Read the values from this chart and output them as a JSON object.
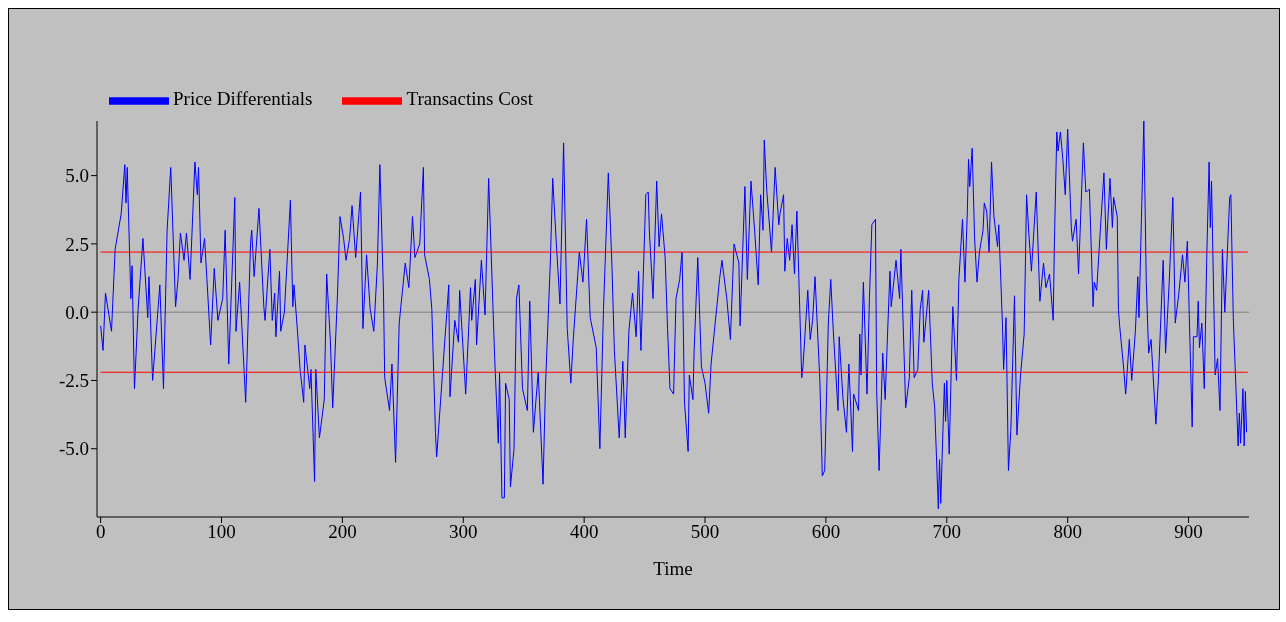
{
  "chart_data": {
    "type": "line",
    "xlabel": "Time",
    "xlim": [
      -3,
      950
    ],
    "ylim": [
      -7.5,
      7.0
    ],
    "xticks": [
      0,
      100,
      200,
      300,
      400,
      500,
      600,
      700,
      800,
      900
    ],
    "yticks": [
      {
        "value": -5,
        "label": "-5.0"
      },
      {
        "value": -2.5,
        "label": "-2.5"
      },
      {
        "value": 0,
        "label": "0.0"
      },
      {
        "value": 2.5,
        "label": "2.5"
      },
      {
        "value": 5,
        "label": "5.0"
      }
    ],
    "grid": false,
    "legend": "top left",
    "marker": "none",
    "line_style": "solid",
    "ref_lines": [
      {
        "axis": "y",
        "value": 0,
        "color": "#808080"
      }
    ],
    "series": [
      {
        "name": "Price Differentials",
        "color": "#0000ff",
        "x": [
          0,
          2,
          4,
          9,
          12,
          17,
          20,
          21,
          22,
          25,
          26,
          28,
          31,
          35,
          39,
          40,
          43,
          49,
          52,
          55,
          58,
          62,
          64,
          66,
          69,
          71,
          74,
          78,
          80,
          81,
          83,
          86,
          91,
          94,
          97,
          101,
          103,
          106,
          111,
          112,
          115,
          120,
          124,
          125,
          127,
          131,
          135,
          136,
          140,
          142,
          144,
          145,
          148,
          149,
          152,
          157,
          159,
          160,
          163,
          165,
          168,
          169,
          173,
          174,
          177,
          178,
          181,
          185,
          187,
          190,
          192,
          196,
          198,
          201,
          203,
          206,
          208,
          211,
          215,
          217,
          220,
          223,
          226,
          229,
          231,
          234,
          235,
          239,
          241,
          244,
          247,
          252,
          255,
          258,
          260,
          264,
          267,
          268,
          272,
          274,
          277,
          278,
          284,
          288,
          289,
          293,
          296,
          297,
          302,
          306,
          307,
          310,
          311,
          315,
          318,
          321,
          326,
          329,
          330,
          332,
          334,
          335,
          338,
          339,
          342,
          344,
          346,
          349,
          353,
          355,
          358,
          362,
          366,
          368,
          372,
          374,
          377,
          380,
          383,
          386,
          389,
          391,
          396,
          399,
          402,
          405,
          410,
          413,
          416,
          420,
          423,
          425,
          429,
          432,
          434,
          437,
          440,
          443,
          445,
          447,
          451,
          453,
          454,
          457,
          460,
          462,
          464,
          467,
          469,
          471,
          474,
          476,
          479,
          481,
          482,
          483,
          486,
          487,
          490,
          491,
          494,
          497,
          500,
          503,
          505,
          510,
          512,
          514,
          518,
          521,
          524,
          528,
          529,
          533,
          535,
          538,
          541,
          544,
          546,
          548,
          549,
          551,
          555,
          558,
          561,
          562,
          565,
          566,
          568,
          570,
          572,
          574,
          576,
          580,
          581,
          585,
          587,
          589,
          591,
          595,
          597,
          599,
          602,
          604,
          606,
          610,
          611,
          614,
          617,
          619,
          622,
          623,
          627,
          628,
          629,
          631,
          634,
          636,
          638,
          641,
          642,
          644,
          647,
          649,
          652,
          653,
          654,
          658,
          661,
          662,
          666,
          669,
          671,
          673,
          676,
          678,
          680,
          681,
          685,
          688,
          690,
          693,
          694,
          695,
          698,
          699,
          700,
          702,
          704,
          705,
          708,
          710,
          713,
          715,
          717,
          718,
          719,
          721,
          723,
          725,
          727,
          730,
          731,
          733,
          735,
          737,
          739,
          742,
          743,
          746,
          747,
          749,
          751,
          753,
          756,
          758,
          761,
          764,
          766,
          768,
          770,
          774,
          777,
          780,
          782,
          785,
          788,
          789,
          791,
          792,
          794,
          796,
          798,
          800,
          803,
          804,
          807,
          809,
          813,
          815,
          818,
          821,
          822,
          824,
          827,
          830,
          832,
          835,
          837,
          838,
          841,
          842,
          843,
          846,
          848,
          851,
          853,
          856,
          858,
          859,
          863,
          865,
          867,
          869,
          873,
          875,
          879,
          881,
          884,
          887,
          889,
          892,
          895,
          897,
          899,
          903,
          904,
          907,
          908,
          909,
          911,
          913,
          915,
          917,
          918,
          919,
          922,
          924,
          926,
          928,
          930,
          934,
          935,
          937,
          941,
          942,
          943,
          945,
          946,
          947,
          948
        ],
        "values": [
          -0.5,
          -1.4,
          0.7,
          -0.7,
          2.3,
          3.6,
          5.4,
          4.0,
          5.3,
          0.5,
          1.7,
          -2.8,
          0.1,
          2.7,
          -0.2,
          1.3,
          -2.5,
          1.0,
          -2.8,
          3.0,
          5.3,
          0.2,
          1.2,
          2.9,
          1.9,
          2.9,
          1.2,
          5.5,
          4.3,
          5.3,
          1.8,
          2.7,
          -1.2,
          1.6,
          -0.3,
          0.5,
          3.0,
          -1.9,
          4.2,
          -0.7,
          1.1,
          -3.3,
          2.5,
          3.0,
          1.3,
          3.8,
          0.2,
          -0.3,
          2.3,
          -0.3,
          0.7,
          -0.9,
          1.5,
          -0.7,
          0.0,
          4.1,
          0.2,
          1.0,
          -0.8,
          -2.1,
          -3.3,
          -1.2,
          -2.8,
          -2.1,
          -6.2,
          -2.1,
          -4.6,
          -3.2,
          1.4,
          -1.0,
          -3.5,
          0.7,
          3.5,
          2.7,
          1.9,
          2.7,
          3.9,
          2.0,
          4.4,
          -0.6,
          2.1,
          0.1,
          -0.7,
          1.8,
          5.4,
          0.7,
          -2.4,
          -3.6,
          -1.9,
          -5.5,
          -0.4,
          1.8,
          0.9,
          3.5,
          2.0,
          2.5,
          5.3,
          2.1,
          1.2,
          0.1,
          -4.4,
          -5.3,
          -1.5,
          1.0,
          -3.1,
          -0.3,
          -1.1,
          0.8,
          -3.0,
          0.9,
          -0.3,
          1.2,
          -1.2,
          1.9,
          -0.1,
          4.9,
          -1.7,
          -4.8,
          -2.2,
          -6.8,
          -6.8,
          -2.6,
          -3.2,
          -6.4,
          -5.0,
          0.5,
          1.0,
          -2.8,
          -3.6,
          0.4,
          -4.4,
          -2.2,
          -6.3,
          -2.7,
          1.8,
          4.9,
          2.5,
          0.3,
          6.2,
          -0.6,
          -2.6,
          -1.0,
          2.2,
          1.1,
          3.4,
          -0.2,
          -1.3,
          -5.0,
          0.1,
          5.1,
          1.7,
          -1.4,
          -4.6,
          -1.8,
          -4.6,
          -0.7,
          0.7,
          -0.9,
          1.5,
          -1.4,
          4.3,
          4.4,
          2.9,
          0.5,
          4.8,
          2.4,
          3.6,
          2.0,
          -0.6,
          -2.8,
          -3.0,
          0.5,
          1.2,
          2.2,
          -0.5,
          -3.3,
          -5.1,
          -2.3,
          -3.2,
          -1.4,
          2.0,
          -2.0,
          -2.6,
          -3.7,
          -1.9,
          0.3,
          1.2,
          1.9,
          0.5,
          -1.0,
          2.5,
          1.8,
          -0.5,
          4.6,
          1.2,
          4.8,
          3.0,
          1.0,
          4.3,
          3.0,
          6.3,
          4.5,
          2.2,
          5.3,
          3.2,
          3.6,
          4.3,
          1.5,
          2.7,
          1.9,
          3.2,
          1.4,
          3.7,
          -2.4,
          -2.0,
          0.8,
          -1.0,
          -0.3,
          1.3,
          -2.5,
          -6.0,
          -5.8,
          -0.4,
          1.2,
          -0.6,
          -3.6,
          -0.9,
          -3.1,
          -4.4,
          -1.9,
          -5.1,
          -3.0,
          -3.6,
          -0.8,
          -2.3,
          1.1,
          -3.0,
          0.5,
          3.2,
          3.4,
          -2.9,
          -5.8,
          -1.5,
          -3.2,
          0.4,
          1.5,
          0.2,
          1.9,
          0.5,
          2.3,
          -3.5,
          -2.4,
          0.8,
          -2.4,
          -2.1,
          0.1,
          0.8,
          -1.1,
          0.8,
          -2.6,
          -3.5,
          -7.2,
          -5.4,
          -7.0,
          -2.6,
          -4.0,
          -2.5,
          -5.2,
          -1.5,
          0.2,
          -2.5,
          1.2,
          3.4,
          1.1,
          3.7,
          5.6,
          4.6,
          6.0,
          2.7,
          1.1,
          2.2,
          3.0,
          4.0,
          3.7,
          2.2,
          5.5,
          3.5,
          2.4,
          3.2,
          -0.4,
          -2.1,
          -0.2,
          -5.8,
          -4.3,
          0.6,
          -4.5,
          -2.3,
          -0.8,
          4.3,
          2.8,
          1.5,
          4.4,
          0.4,
          1.8,
          0.9,
          1.4,
          -0.3,
          2.5,
          6.6,
          5.9,
          6.6,
          5.6,
          4.3,
          6.7,
          3.1,
          2.6,
          3.4,
          1.4,
          6.2,
          4.4,
          4.5,
          0.2,
          1.1,
          0.8,
          3.0,
          5.1,
          2.3,
          4.9,
          3.1,
          4.2,
          3.5,
          0.1,
          -0.5,
          -1.9,
          -3.0,
          -1.0,
          -2.5,
          -0.7,
          1.3,
          -0.2,
          7.0,
          1.1,
          -1.5,
          -1.0,
          -4.1,
          -2.5,
          1.9,
          -1.5,
          1.1,
          4.2,
          -0.4,
          0.7,
          2.1,
          1.1,
          2.6,
          -4.2,
          -0.9,
          -0.9,
          0.4,
          -1.3,
          -0.4,
          -2.8,
          1.9,
          5.5,
          3.1,
          4.8,
          -2.3,
          -1.7,
          -3.6,
          2.3,
          0.0,
          4.2,
          4.3,
          -0.2,
          -4.9,
          -3.7,
          -4.8,
          -2.8,
          -4.9,
          -2.9,
          -4.4
        ]
      },
      {
        "name": "Transactins Cost",
        "color": "#ff0000",
        "x": [
          0,
          949
        ],
        "values": [
          2.2,
          2.2
        ]
      },
      {
        "color": "#ff0000",
        "x": [
          0,
          949
        ],
        "values": [
          -2.2,
          -2.2
        ]
      }
    ]
  }
}
